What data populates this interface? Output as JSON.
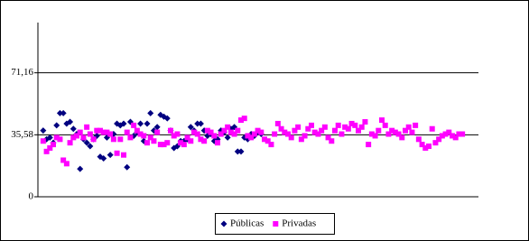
{
  "chart_data": {
    "type": "scatter",
    "series": [
      {
        "name": "Públicas",
        "color": "#000080",
        "marker": "diamond",
        "values": [
          38,
          33,
          34,
          31,
          41,
          48,
          48,
          42,
          43,
          39,
          36,
          16,
          33,
          31,
          29,
          33,
          35,
          23,
          22,
          34,
          24,
          36,
          42,
          41,
          42,
          17,
          43,
          35,
          37,
          42,
          32,
          42,
          48,
          38,
          40,
          47,
          46,
          45,
          38,
          28,
          29,
          32,
          32,
          33,
          40,
          38,
          42,
          42,
          38,
          35,
          36,
          32,
          33,
          38,
          37,
          34,
          39,
          40,
          26,
          26,
          34,
          33,
          36,
          35,
          37,
          36
        ]
      },
      {
        "name": "Privadas",
        "color": "#ff00ff",
        "marker": "square",
        "values": [
          32,
          26,
          28,
          30,
          34,
          33,
          21,
          19,
          31,
          34,
          35,
          37,
          34,
          40,
          36,
          33,
          38,
          38,
          37,
          37,
          36,
          33,
          25,
          33,
          24,
          37,
          34,
          41,
          38,
          36,
          35,
          31,
          34,
          32,
          37,
          30,
          30,
          31,
          38,
          35,
          36,
          31,
          30,
          34,
          32,
          37,
          36,
          33,
          32,
          38,
          37,
          35,
          31,
          36,
          38,
          40,
          37,
          36,
          38,
          44,
          45,
          35,
          34,
          36,
          38,
          37,
          33,
          32,
          30,
          36,
          42,
          39,
          37,
          36,
          34,
          38,
          40,
          33,
          35,
          39,
          41,
          37,
          36,
          38,
          40,
          34,
          32,
          38,
          41,
          36,
          40,
          39,
          42,
          41,
          38,
          40,
          43,
          30,
          36,
          35,
          38,
          44,
          41,
          36,
          38,
          37,
          36,
          34,
          38,
          40,
          37,
          41,
          33,
          30,
          28,
          29,
          39,
          31,
          33,
          35,
          36,
          37,
          35,
          34,
          36,
          36
        ]
      }
    ],
    "ylim": [
      0,
      100
    ],
    "yticks": [
      0,
      {
        "value": 35.58,
        "label": "35,58"
      },
      {
        "value": 71.16,
        "label": "71,16"
      }
    ],
    "grid": true,
    "legend": "bottom"
  }
}
